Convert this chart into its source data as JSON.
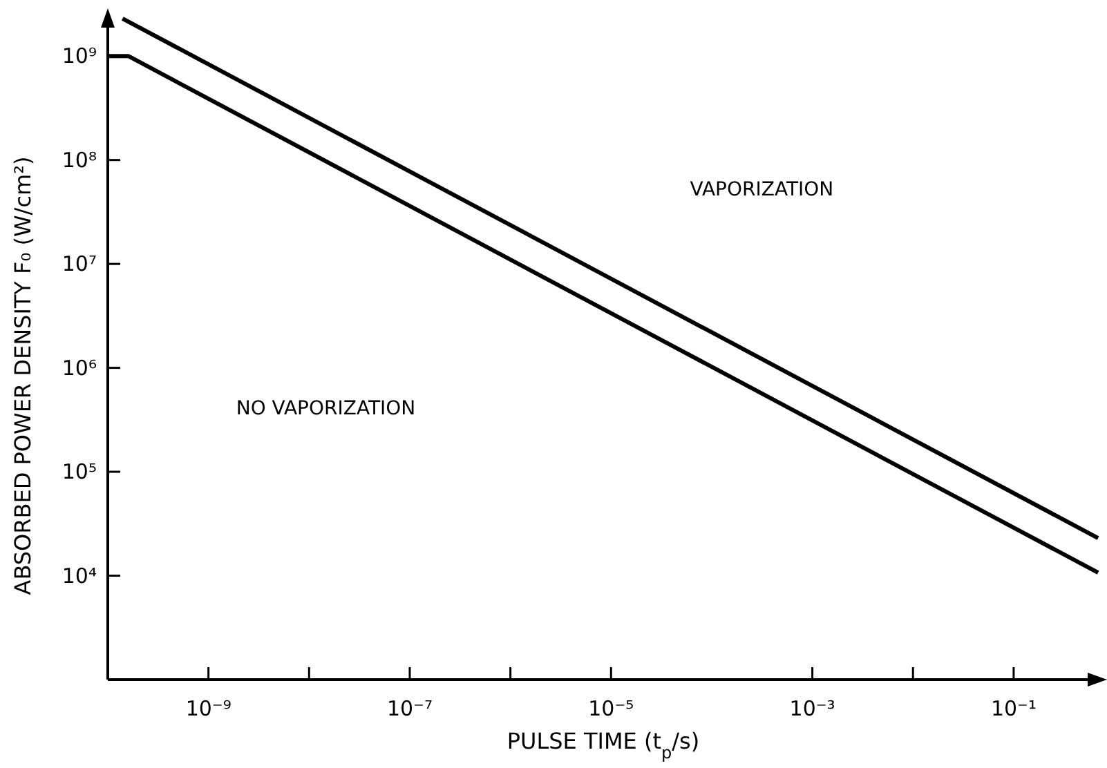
{
  "chart_data": {
    "type": "line",
    "xlabel": "PULSE TIME (t$_{p}$/s)",
    "ylabel": "ABSORBED POWER DENSITY F₀ (W/cm²)",
    "log": "xy",
    "grid": false,
    "marker": "none",
    "line_style": "solid",
    "xlim": [
      1e-10,
      0.7
    ],
    "ylim": [
      1000,
      2400000000.0
    ],
    "xticks": [
      {
        "value": 1e-09,
        "label": "10⁻⁹"
      },
      {
        "value": 1e-08,
        "label": null
      },
      {
        "value": 1e-07,
        "label": "10⁻⁷"
      },
      {
        "value": 1e-06,
        "label": null
      },
      {
        "value": 1e-05,
        "label": "10⁻⁵"
      },
      {
        "value": 0.001,
        "label": "10⁻³"
      },
      {
        "value": 0.01,
        "label": null
      },
      {
        "value": 0.1,
        "label": "10⁻¹"
      }
    ],
    "yticks": [
      {
        "value": 10000.0,
        "label": "10⁴"
      },
      {
        "value": 100000.0,
        "label": "10⁵"
      },
      {
        "value": 1000000.0,
        "label": "10⁶"
      },
      {
        "value": 10000000.0,
        "label": "10⁷"
      },
      {
        "value": 100000000.0,
        "label": "10⁸"
      },
      {
        "value": 1000000000.0,
        "label": "10⁹"
      }
    ],
    "series": [
      {
        "color": "#000000",
        "x": [
          1.4e-10,
          0.69
        ],
        "values": [
          2300000000.0,
          23000.0
        ]
      },
      {
        "color": "#000000",
        "x": [
          1e-10,
          1.6e-10,
          0.69
        ],
        "values": [
          1000000000.0,
          1000000000.0,
          10700.0
        ]
      }
    ],
    "annotations": [
      "VAPORIZATION",
      "NO VAPORIZATION"
    ]
  }
}
